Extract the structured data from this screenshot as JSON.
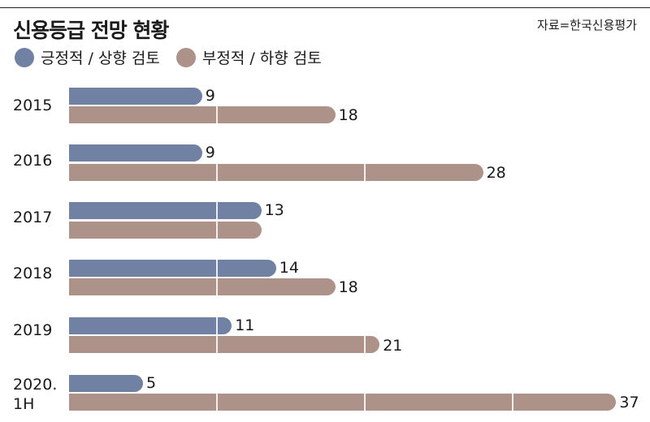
{
  "header": {
    "title": "신용등급 전망 현황",
    "source": "자료=한국신용평가"
  },
  "legend": [
    {
      "label": "긍정적 / 상향 검토",
      "color": "#7081a3"
    },
    {
      "label": "부정적 / 하향 검토",
      "color": "#ad928a"
    }
  ],
  "chart_data": {
    "type": "bar",
    "orientation": "horizontal",
    "title": "신용등급 전망 현황",
    "source": "자료=한국신용평가",
    "categories": [
      "2015",
      "2016",
      "2017",
      "2018",
      "2019",
      "2020. 1H"
    ],
    "series": [
      {
        "name": "긍정적 / 상향 검토",
        "color": "#7081a3",
        "values": [
          9,
          9,
          13,
          14,
          11,
          5
        ]
      },
      {
        "name": "부정적 / 하향 검토",
        "color": "#ad928a",
        "values": [
          18,
          28,
          13,
          18,
          21,
          37
        ]
      }
    ],
    "labels_shown": {
      "positive": [
        "9",
        "9",
        "13",
        "14",
        "11",
        "5"
      ],
      "negative": [
        "18",
        "28",
        "",
        "18",
        "21",
        "37"
      ]
    },
    "xlabel": "",
    "ylabel": "",
    "xlim": [
      0,
      37
    ],
    "gridlines_at": [
      10,
      20,
      30
    ],
    "legend_position": "top-left"
  },
  "rows": [
    {
      "year": "2015",
      "year2": "",
      "pos": 9,
      "neg": 18,
      "pos_label": "9",
      "neg_label": "18"
    },
    {
      "year": "2016",
      "year2": "",
      "pos": 9,
      "neg": 28,
      "pos_label": "9",
      "neg_label": "28"
    },
    {
      "year": "2017",
      "year2": "",
      "pos": 13,
      "neg": 13,
      "pos_label": "13",
      "neg_label": ""
    },
    {
      "year": "2018",
      "year2": "",
      "pos": 14,
      "neg": 18,
      "pos_label": "14",
      "neg_label": "18"
    },
    {
      "year": "2019",
      "year2": "",
      "pos": 11,
      "neg": 21,
      "pos_label": "11",
      "neg_label": "21"
    },
    {
      "year": "2020.",
      "year2": "1H",
      "pos": 5,
      "neg": 37,
      "pos_label": "5",
      "neg_label": "37"
    }
  ]
}
